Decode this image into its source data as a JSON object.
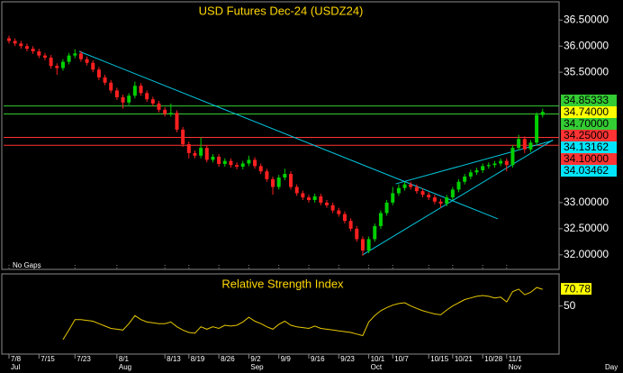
{
  "chart_data": [
    {
      "type": "candlestick",
      "title": "USD Futures Dec-24 (USDZ24)",
      "note": "No Gaps",
      "categories": [
        "7/8",
        null,
        null,
        null,
        null,
        "7/15",
        null,
        null,
        null,
        null,
        null,
        "7/23",
        null,
        null,
        null,
        null,
        null,
        null,
        "8/1",
        null,
        null,
        null,
        null,
        null,
        null,
        null,
        "8/13",
        null,
        null,
        null,
        "8/19",
        null,
        null,
        null,
        null,
        "8/26",
        null,
        null,
        null,
        null,
        "9/2",
        null,
        null,
        null,
        null,
        "9/9",
        null,
        null,
        null,
        null,
        "9/16",
        null,
        null,
        null,
        null,
        "9/23",
        null,
        null,
        null,
        null,
        "10/1",
        null,
        null,
        null,
        "10/7",
        null,
        null,
        null,
        null,
        null,
        "10/15",
        null,
        null,
        null,
        "10/21",
        null,
        null,
        null,
        null,
        "10/28",
        null,
        null,
        null,
        "11/1",
        null,
        null,
        null,
        null,
        null,
        null
      ],
      "months": [
        "Jul",
        null,
        null,
        null,
        null,
        null,
        null,
        null,
        null,
        null,
        null,
        null,
        null,
        null,
        null,
        null,
        null,
        null,
        "Aug",
        null,
        null,
        null,
        null,
        null,
        null,
        null,
        null,
        null,
        null,
        null,
        null,
        null,
        null,
        null,
        null,
        null,
        null,
        null,
        null,
        null,
        "Sep",
        null,
        null,
        null,
        null,
        null,
        null,
        null,
        null,
        null,
        null,
        null,
        null,
        null,
        null,
        null,
        null,
        null,
        null,
        null,
        "Oct",
        null,
        null,
        null,
        null,
        null,
        null,
        null,
        null,
        null,
        null,
        null,
        null,
        null,
        null,
        null,
        null,
        null,
        null,
        null,
        null,
        null,
        null,
        "Nov",
        null,
        null,
        null,
        null,
        null,
        null
      ],
      "open": [
        36.15,
        36.1,
        36.05,
        36.0,
        35.95,
        35.9,
        35.82,
        35.78,
        35.62,
        35.58,
        35.7,
        35.82,
        35.86,
        35.75,
        35.68,
        35.55,
        35.4,
        35.3,
        35.15,
        35.02,
        34.92,
        35.05,
        35.24,
        35.1,
        34.98,
        34.9,
        34.78,
        34.7,
        34.72,
        34.4,
        34.12,
        33.95,
        33.9,
        34.05,
        33.82,
        33.88,
        33.74,
        33.8,
        33.72,
        33.69,
        33.75,
        33.82,
        33.7,
        33.6,
        33.45,
        33.3,
        33.48,
        33.55,
        33.3,
        33.18,
        33.1,
        33.05,
        33.12,
        33.0,
        32.95,
        32.85,
        32.78,
        32.65,
        32.5,
        32.3,
        32.08,
        32.3,
        32.55,
        32.8,
        33.0,
        33.18,
        33.28,
        33.35,
        33.3,
        33.22,
        33.15,
        33.1,
        33.02,
        32.98,
        33.1,
        33.25,
        33.4,
        33.5,
        33.58,
        33.62,
        33.7,
        33.72,
        33.75,
        33.8,
        33.72,
        34.05,
        34.22,
        34.02,
        34.15,
        34.68
      ],
      "high": [
        36.2,
        36.15,
        36.1,
        36.05,
        36.0,
        35.95,
        35.87,
        35.83,
        35.67,
        35.75,
        35.87,
        35.94,
        35.91,
        35.8,
        35.73,
        35.6,
        35.45,
        35.35,
        35.2,
        35.07,
        35.1,
        35.32,
        35.29,
        35.15,
        35.03,
        34.95,
        34.83,
        34.9,
        34.77,
        34.45,
        34.17,
        34.0,
        34.25,
        34.1,
        33.93,
        33.93,
        33.85,
        33.85,
        33.77,
        33.8,
        33.9,
        33.87,
        33.75,
        33.65,
        33.5,
        33.53,
        33.65,
        33.6,
        33.35,
        33.23,
        33.15,
        33.17,
        33.17,
        33.05,
        33.0,
        32.9,
        32.83,
        32.7,
        32.55,
        32.35,
        32.35,
        32.6,
        32.85,
        33.05,
        33.3,
        33.35,
        33.4,
        33.4,
        33.35,
        33.27,
        33.2,
        33.15,
        33.07,
        33.15,
        33.3,
        33.45,
        33.55,
        33.63,
        33.67,
        33.75,
        33.77,
        33.8,
        33.85,
        33.85,
        34.1,
        34.3,
        34.27,
        34.2,
        34.73,
        34.8
      ],
      "low": [
        36.05,
        36.0,
        35.95,
        35.9,
        35.85,
        35.77,
        35.73,
        35.57,
        35.45,
        35.53,
        35.65,
        35.77,
        35.7,
        35.63,
        35.5,
        35.35,
        35.25,
        35.1,
        34.97,
        34.8,
        34.87,
        35.0,
        35.05,
        34.93,
        34.85,
        34.73,
        34.65,
        34.65,
        34.35,
        34.07,
        33.85,
        33.85,
        33.85,
        33.77,
        33.77,
        33.69,
        33.69,
        33.67,
        33.64,
        33.64,
        33.7,
        33.65,
        33.55,
        33.4,
        33.15,
        33.25,
        33.43,
        33.25,
        33.13,
        33.05,
        33.0,
        33.0,
        32.95,
        32.9,
        32.8,
        32.73,
        32.6,
        32.45,
        32.25,
        31.98,
        32.03,
        32.25,
        32.5,
        32.75,
        32.95,
        33.13,
        33.23,
        33.25,
        33.17,
        33.1,
        33.05,
        32.97,
        32.9,
        32.93,
        33.05,
        33.2,
        33.35,
        33.45,
        33.53,
        33.57,
        33.65,
        33.67,
        33.7,
        33.6,
        33.67,
        34.0,
        33.95,
        33.97,
        34.1,
        34.63
      ],
      "close": [
        36.1,
        36.05,
        36.0,
        35.95,
        35.9,
        35.82,
        35.78,
        35.62,
        35.58,
        35.7,
        35.82,
        35.86,
        35.75,
        35.68,
        35.55,
        35.4,
        35.3,
        35.15,
        35.02,
        34.92,
        35.05,
        35.24,
        35.1,
        34.98,
        34.9,
        34.78,
        34.7,
        34.72,
        34.4,
        34.12,
        33.95,
        33.9,
        34.05,
        33.82,
        33.88,
        33.74,
        33.8,
        33.72,
        33.69,
        33.75,
        33.82,
        33.7,
        33.6,
        33.45,
        33.3,
        33.48,
        33.55,
        33.3,
        33.18,
        33.1,
        33.05,
        33.12,
        33.0,
        32.95,
        32.85,
        32.78,
        32.65,
        32.5,
        32.3,
        32.08,
        32.3,
        32.55,
        32.8,
        33.0,
        33.18,
        33.28,
        33.35,
        33.3,
        33.22,
        33.15,
        33.1,
        33.02,
        32.98,
        33.1,
        33.25,
        33.4,
        33.5,
        33.58,
        33.62,
        33.7,
        33.72,
        33.75,
        33.8,
        33.72,
        34.05,
        34.22,
        34.02,
        34.15,
        34.68,
        34.74
      ],
      "up_color": "#00d000",
      "down_color": "#ff2020",
      "ylim": [
        31.72,
        36.85
      ],
      "yticks": [
        {
          "value": 32,
          "label": "32.00000"
        },
        {
          "value": 32.5,
          "label": "32.50000"
        },
        {
          "value": 33,
          "label": "33.00000"
        },
        {
          "value": 35.5,
          "label": "35.50000"
        },
        {
          "value": 36,
          "label": "36.00000"
        },
        {
          "value": 36.5,
          "label": "36.50000"
        }
      ],
      "levels": [
        {
          "value": 34.85333,
          "color": "#33cc33"
        },
        {
          "value": 34.7,
          "color": "#33cc33"
        },
        {
          "value": 34.25,
          "color": "#ff3333"
        },
        {
          "value": 34.1,
          "color": "#ff3333"
        }
      ],
      "price_labels": [
        {
          "value": 34.85333,
          "label": "34.85333",
          "color": "#33cc33"
        },
        {
          "value": 34.74,
          "label": "34.74000",
          "color": "#ffff00"
        },
        {
          "value": 34.7,
          "label": "34.70000",
          "color": "#33cc33"
        },
        {
          "value": 34.25,
          "label": "34.25000",
          "color": "#ff3333"
        },
        {
          "value": 34.13162,
          "label": "34.13162",
          "color": "#00e5ff"
        },
        {
          "value": 34.1,
          "label": "34.10000",
          "color": "#ff3333"
        },
        {
          "value": 34.03462,
          "label": "34.03462",
          "color": "#00e5ff"
        }
      ],
      "trendlines": [
        {
          "x": [
            11.7,
            81.5
          ],
          "y": [
            35.9,
            32.69
          ],
          "color": "#00c8e0"
        },
        {
          "x": [
            59,
            90.7
          ],
          "y": [
            32.0,
            34.2
          ],
          "color": "#00c8e0"
        },
        {
          "x": [
            64.5,
            90.7
          ],
          "y": [
            33.36,
            34.19
          ],
          "color": "#00c8e0"
        }
      ]
    },
    {
      "type": "line",
      "title": "Relative Strength Index",
      "x_label": "Day",
      "color": "#e8c800",
      "values": [
        null,
        null,
        null,
        null,
        null,
        null,
        null,
        null,
        null,
        8,
        20,
        33,
        33,
        32,
        31,
        28,
        25,
        22,
        21,
        20,
        28,
        38,
        33,
        30,
        29,
        28,
        28,
        30,
        24,
        20,
        17,
        16,
        24,
        21,
        24,
        22,
        26,
        25,
        26,
        30,
        36,
        31,
        28,
        24,
        21,
        27,
        31,
        26,
        24,
        23,
        22,
        25,
        22,
        21,
        20,
        19,
        18,
        17,
        15,
        13,
        30,
        38,
        44,
        48,
        51,
        53,
        54,
        50,
        47,
        44,
        42,
        40,
        39,
        45,
        50,
        54,
        58,
        60,
        62,
        63,
        62,
        60,
        61,
        55,
        68,
        71,
        64,
        67,
        73,
        70.78
      ],
      "ylim": [
        -10,
        90
      ],
      "yticks": [
        50
      ]
    }
  ]
}
